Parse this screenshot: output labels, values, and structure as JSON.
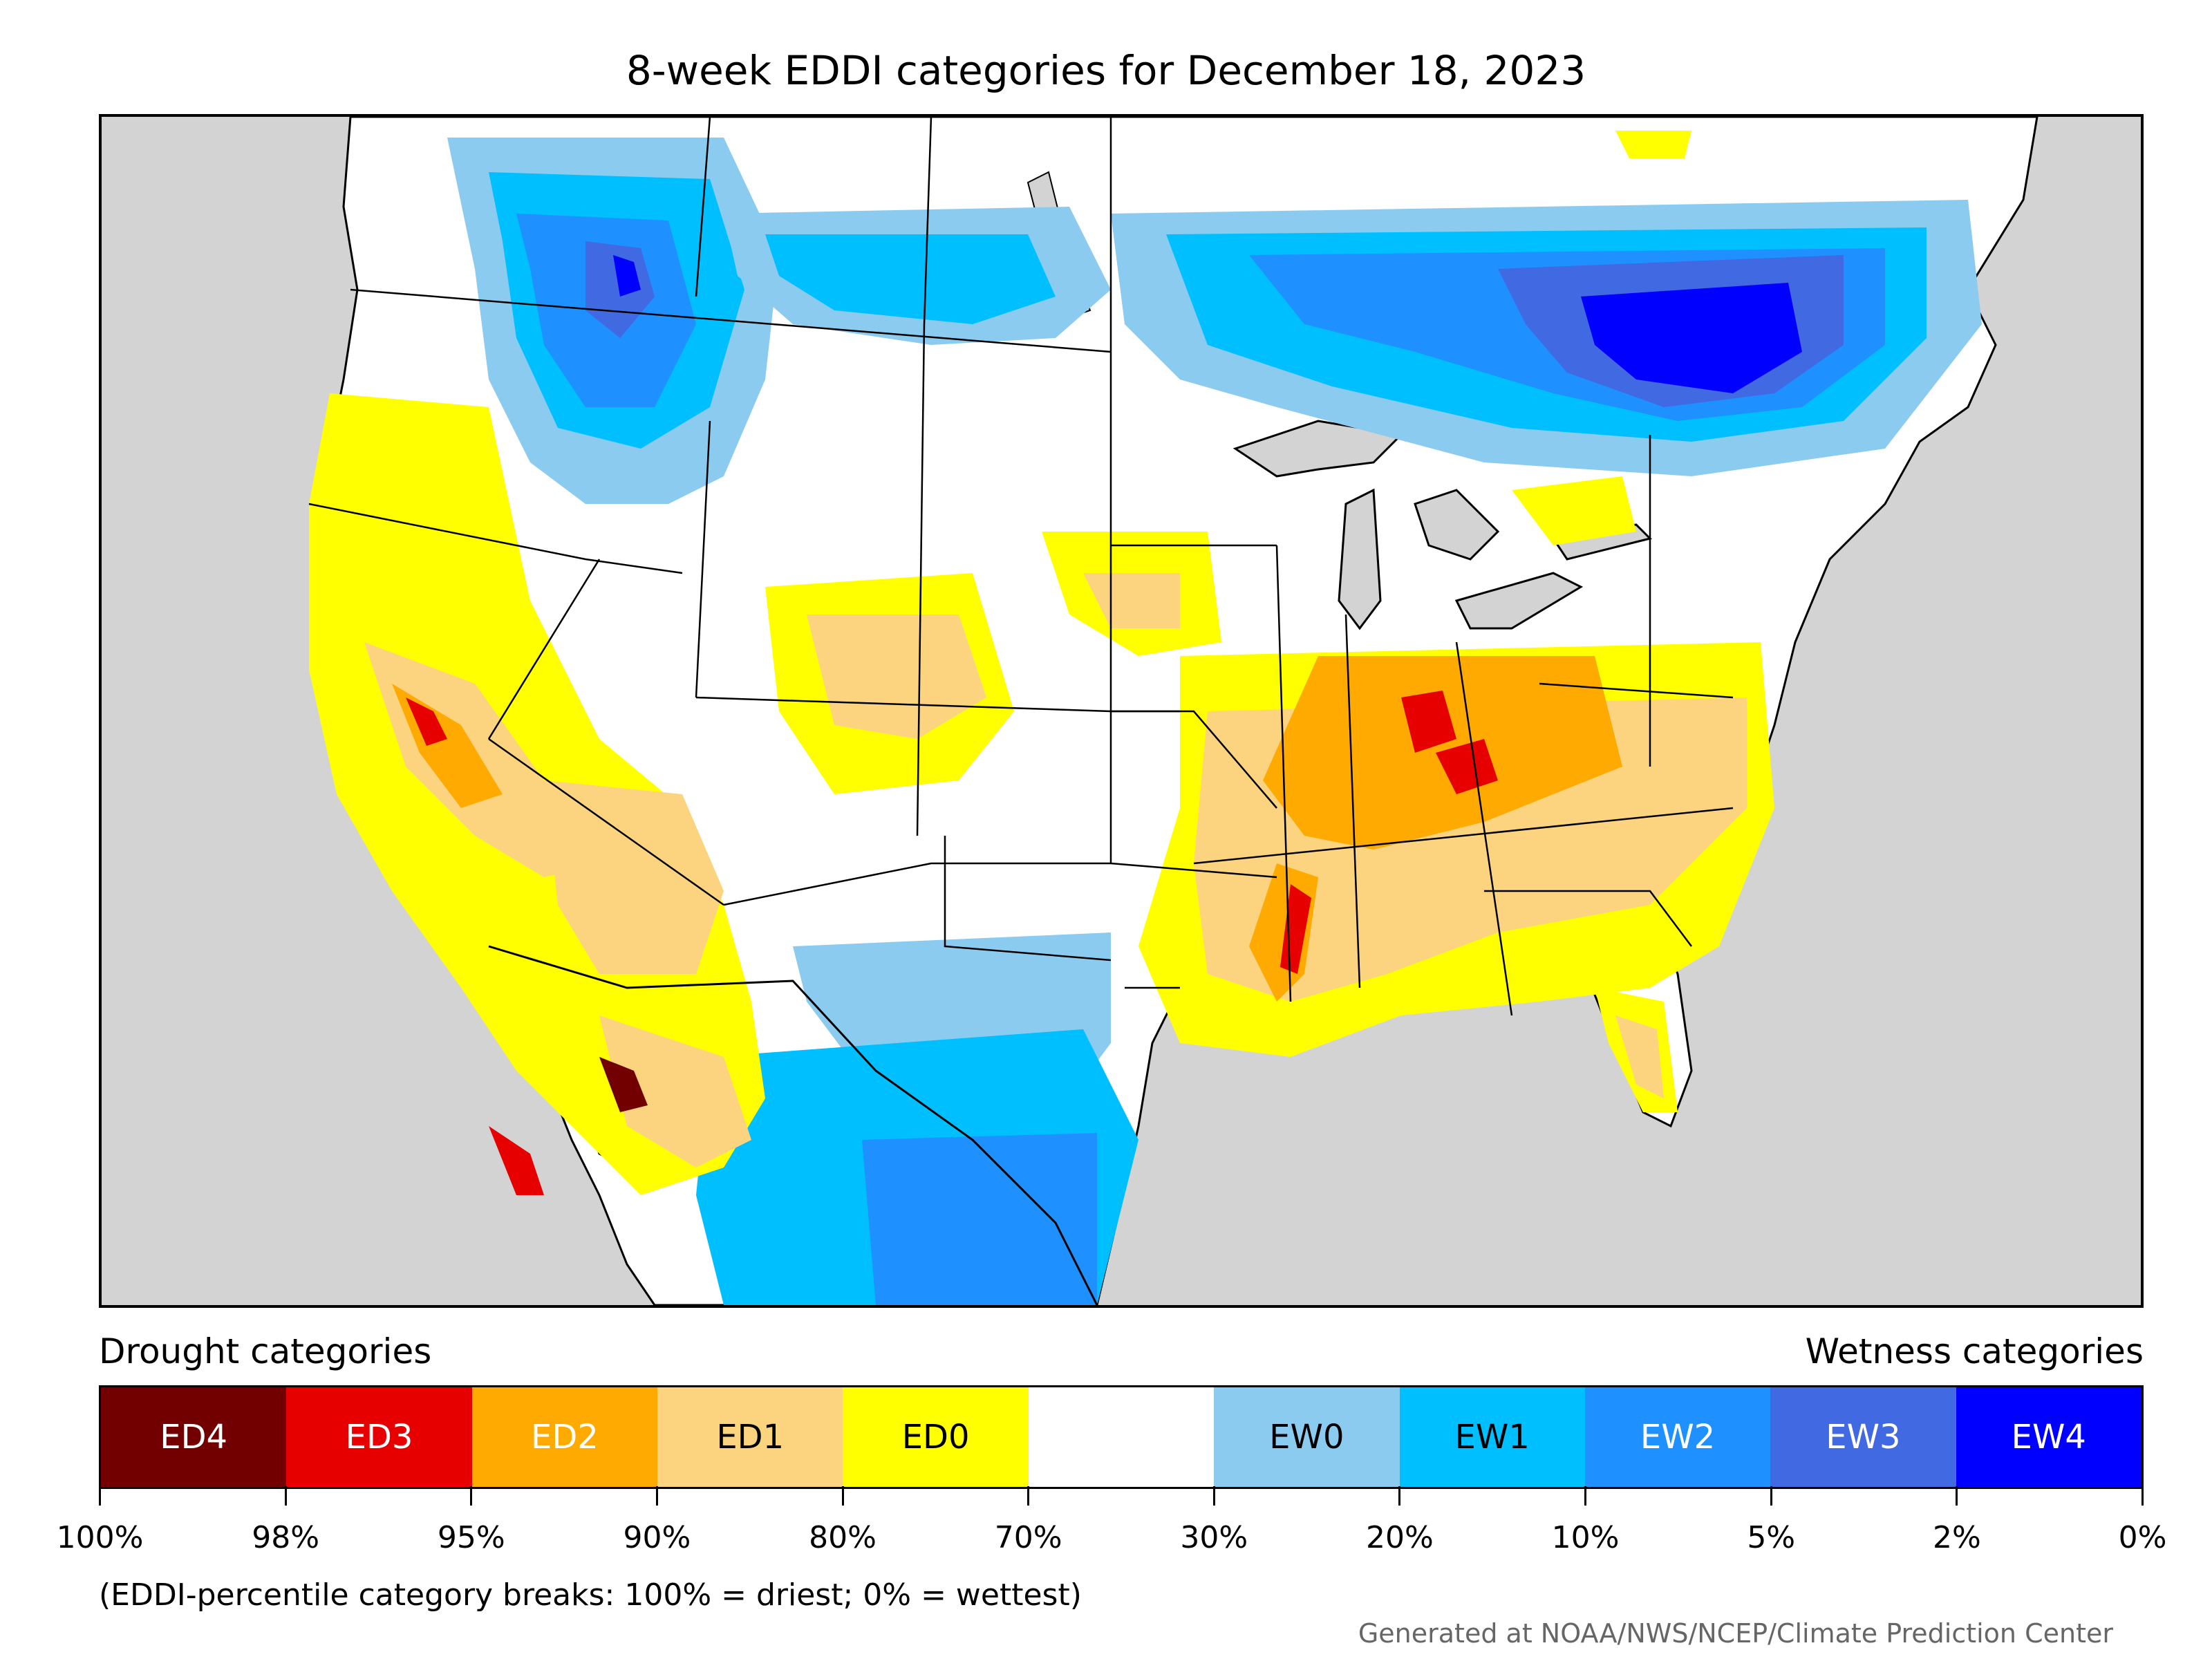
{
  "title": "8-week EDDI categories for December 18, 2023",
  "legend": {
    "drought_heading": "Drought categories",
    "wetness_heading": "Wetness categories",
    "categories": [
      {
        "label": "ED4",
        "color": "#730000",
        "text_color": "#ffffff"
      },
      {
        "label": "ED3",
        "color": "#e60000",
        "text_color": "#ffffff"
      },
      {
        "label": "ED2",
        "color": "#ffaa00",
        "text_color": "#ffffff"
      },
      {
        "label": "ED1",
        "color": "#fcd37f",
        "text_color": "#000000"
      },
      {
        "label": "ED0",
        "color": "#ffff00",
        "text_color": "#000000"
      },
      {
        "label": "",
        "color": "#ffffff",
        "text_color": "#000000"
      },
      {
        "label": "EW0",
        "color": "#8ccbf0",
        "text_color": "#000000"
      },
      {
        "label": "EW1",
        "color": "#00bfff",
        "text_color": "#000000"
      },
      {
        "label": "EW2",
        "color": "#1e90ff",
        "text_color": "#ffffff"
      },
      {
        "label": "EW3",
        "color": "#4169e1",
        "text_color": "#ffffff"
      },
      {
        "label": "EW4",
        "color": "#0000ff",
        "text_color": "#ffffff"
      }
    ],
    "tick_labels": [
      "100%",
      "98%",
      "95%",
      "90%",
      "80%",
      "70%",
      "30%",
      "20%",
      "10%",
      "5%",
      "2%",
      "0%"
    ]
  },
  "footnote": "(EDDI-percentile category breaks: 100% = driest; 0% = wettest)",
  "credit": "Generated at NOAA/NWS/NCEP/Climate Prediction Center",
  "map_colors": {
    "ocean": "#d3d3d3",
    "land": "#ffffff",
    "ED4": "#730000",
    "ED3": "#e60000",
    "ED2": "#ffaa00",
    "ED1": "#fcd37f",
    "ED0": "#ffff00",
    "EW0": "#8ccbf0",
    "EW1": "#00bfff",
    "EW2": "#1e90ff",
    "EW3": "#4169e1",
    "EW4": "#0000ff"
  }
}
